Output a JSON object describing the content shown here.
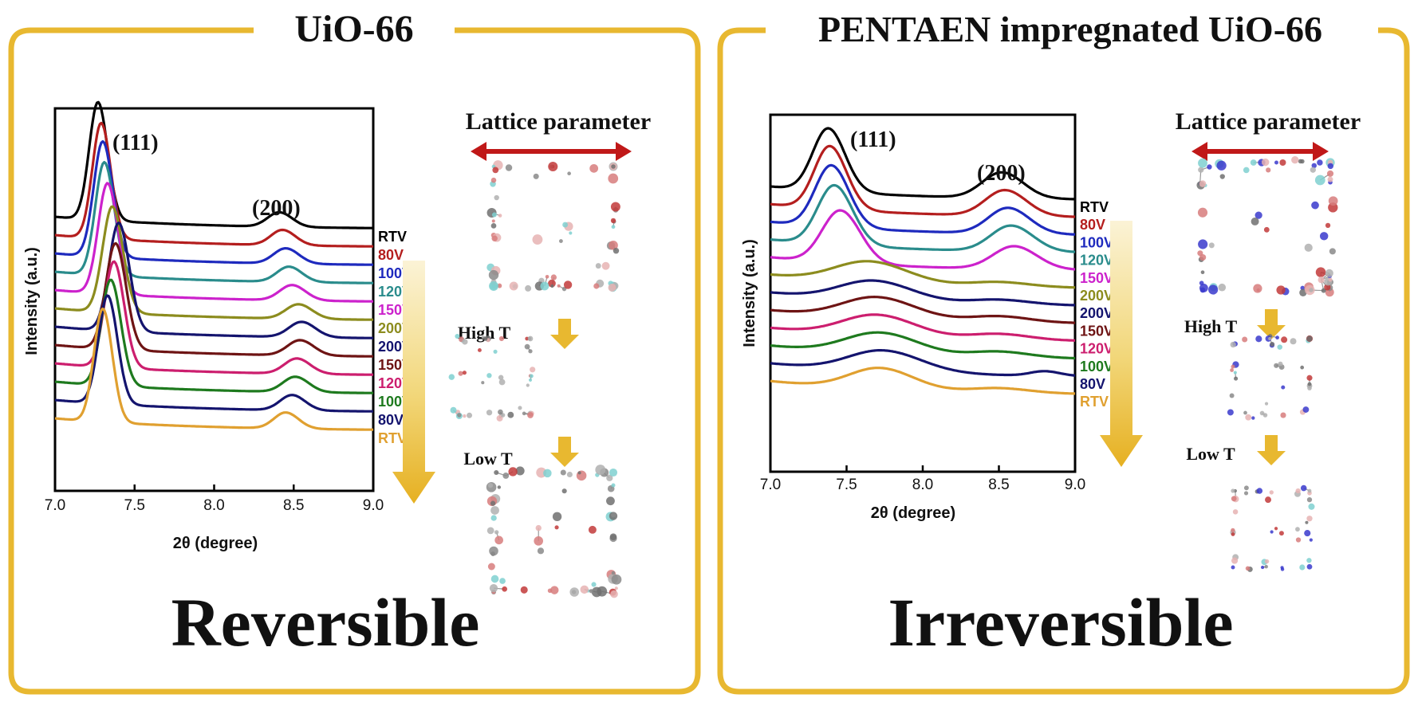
{
  "frame_color": "#E8B830",
  "arrow_color": "#C01818",
  "chart_data": [
    {
      "type": "line",
      "panel_title": "UiO-66",
      "ylabel": "Intensity (a.u.)",
      "xlabel": "2θ (degree)",
      "xlim": [
        7.0,
        9.0
      ],
      "x_ticks": [
        "7.0",
        "7.5",
        "8.0",
        "8.5",
        "9.0"
      ],
      "peak_labels": [
        "(111)",
        "(200)"
      ],
      "verdict": "Reversible",
      "lattice_label": "Lattice parameter",
      "high_t_label": "High T",
      "low_t_label": "Low T",
      "series": [
        {
          "name": "RTV",
          "color": "#000000",
          "peaks": [
            [
              7.27,
              1.0,
              0.06
            ],
            [
              8.41,
              0.38,
              0.08
            ]
          ]
        },
        {
          "name": "80V",
          "color": "#B41E1E",
          "peaks": [
            [
              7.29,
              0.98,
              0.06
            ],
            [
              8.43,
              0.4,
              0.08
            ]
          ]
        },
        {
          "name": "100V",
          "color": "#1E2ABE",
          "peaks": [
            [
              7.3,
              0.98,
              0.062
            ],
            [
              8.45,
              0.4,
              0.082
            ]
          ]
        },
        {
          "name": "120V",
          "color": "#2A8C8C",
          "peaks": [
            [
              7.31,
              0.96,
              0.062
            ],
            [
              8.47,
              0.4,
              0.082
            ]
          ]
        },
        {
          "name": "150V",
          "color": "#CC22CC",
          "peaks": [
            [
              7.33,
              0.94,
              0.064
            ],
            [
              8.49,
              0.4,
              0.084
            ]
          ]
        },
        {
          "name": "200V",
          "color": "#8C8C1E",
          "peaks": [
            [
              7.36,
              0.9,
              0.066
            ],
            [
              8.53,
              0.38,
              0.086
            ]
          ]
        },
        {
          "name": "200V",
          "color": "#14146E",
          "peaks": [
            [
              7.4,
              0.92,
              0.066
            ],
            [
              8.55,
              0.4,
              0.086
            ]
          ]
        },
        {
          "name": "150V",
          "color": "#6E1414",
          "peaks": [
            [
              7.38,
              0.9,
              0.066
            ],
            [
              8.54,
              0.4,
              0.086
            ]
          ]
        },
        {
          "name": "120V",
          "color": "#CC1E6E",
          "peaks": [
            [
              7.37,
              0.9,
              0.064
            ],
            [
              8.52,
              0.4,
              0.084
            ]
          ]
        },
        {
          "name": "100V",
          "color": "#1E7A1E",
          "peaks": [
            [
              7.35,
              0.9,
              0.064
            ],
            [
              8.51,
              0.4,
              0.084
            ]
          ]
        },
        {
          "name": "80V",
          "color": "#14146E",
          "peaks": [
            [
              7.33,
              0.92,
              0.062
            ],
            [
              8.49,
              0.4,
              0.082
            ]
          ]
        },
        {
          "name": "RTV",
          "color": "#E0A030",
          "peaks": [
            [
              7.3,
              0.96,
              0.06
            ],
            [
              8.45,
              0.42,
              0.08
            ]
          ]
        }
      ]
    },
    {
      "type": "line",
      "panel_title": "PENTAEN impregnated  UiO-66",
      "ylabel": "Intensity (a.u.)",
      "xlabel": "2θ (degree)",
      "xlim": [
        7.0,
        9.0
      ],
      "x_ticks": [
        "7.0",
        "7.5",
        "8.0",
        "8.5",
        "9.0"
      ],
      "peak_labels": [
        "(111)",
        "(200)"
      ],
      "verdict": "Irreversible",
      "lattice_label": "Lattice parameter",
      "high_t_label": "High T",
      "low_t_label": "Low T",
      "series": [
        {
          "name": "RTV",
          "color": "#000000",
          "peaks": [
            [
              7.38,
              0.9,
              0.11
            ],
            [
              8.52,
              0.45,
              0.14
            ]
          ]
        },
        {
          "name": "80V",
          "color": "#B41E1E",
          "peaks": [
            [
              7.39,
              0.9,
              0.11
            ],
            [
              8.54,
              0.45,
              0.14
            ]
          ]
        },
        {
          "name": "100V",
          "color": "#1E2ABE",
          "peaks": [
            [
              7.4,
              0.88,
              0.115
            ],
            [
              8.56,
              0.45,
              0.14
            ]
          ]
        },
        {
          "name": "120V",
          "color": "#2A8C8C",
          "peaks": [
            [
              7.42,
              0.85,
              0.12
            ],
            [
              8.58,
              0.45,
              0.145
            ]
          ]
        },
        {
          "name": "150V",
          "color": "#CC22CC",
          "peaks": [
            [
              7.46,
              0.75,
              0.13
            ],
            [
              8.6,
              0.4,
              0.15
            ]
          ]
        },
        {
          "name": "200V",
          "color": "#8C8C1E",
          "peaks": [
            [
              7.65,
              0.3,
              0.25
            ],
            [
              8.5,
              0.08,
              0.2
            ]
          ]
        },
        {
          "name": "200V",
          "color": "#14146E",
          "peaks": [
            [
              7.68,
              0.28,
              0.25
            ],
            [
              8.5,
              0.08,
              0.2
            ]
          ]
        },
        {
          "name": "150V",
          "color": "#6E1414",
          "peaks": [
            [
              7.7,
              0.3,
              0.25
            ],
            [
              8.5,
              0.1,
              0.2
            ]
          ]
        },
        {
          "name": "120V",
          "color": "#CC1E6E",
          "peaks": [
            [
              7.7,
              0.3,
              0.25
            ],
            [
              8.5,
              0.1,
              0.2
            ]
          ]
        },
        {
          "name": "100V",
          "color": "#1E7A1E",
          "peaks": [
            [
              7.72,
              0.3,
              0.25
            ],
            [
              8.5,
              0.1,
              0.2
            ]
          ]
        },
        {
          "name": "80V",
          "color": "#14146E",
          "peaks": [
            [
              7.74,
              0.3,
              0.25
            ],
            [
              8.8,
              0.08,
              0.1
            ]
          ]
        },
        {
          "name": "RTV",
          "color": "#E0A030",
          "peaks": [
            [
              7.72,
              0.3,
              0.22
            ],
            [
              8.5,
              0.08,
              0.2
            ]
          ]
        }
      ]
    }
  ]
}
